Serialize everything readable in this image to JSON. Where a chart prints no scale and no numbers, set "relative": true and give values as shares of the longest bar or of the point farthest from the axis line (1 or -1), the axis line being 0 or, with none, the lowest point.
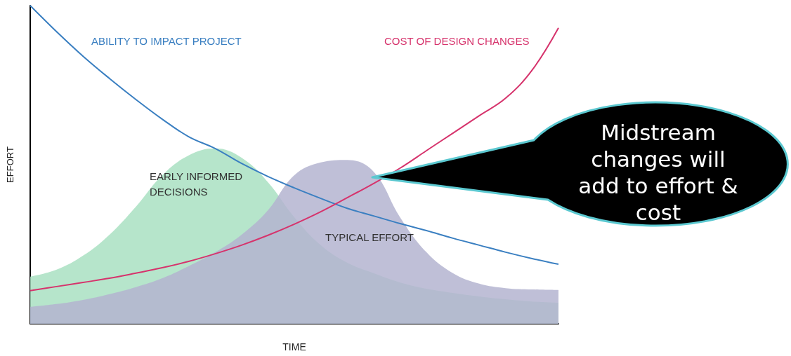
{
  "chart_data": {
    "type": "line",
    "relative": true,
    "xlabel": "TIME",
    "ylabel": "EFFORT",
    "legend": false,
    "marker": "none",
    "line_style": "solid",
    "grid": false,
    "categories": [
      null,
      null,
      null,
      null,
      null,
      null,
      null,
      null,
      null,
      null,
      null,
      null,
      null,
      null,
      null,
      null,
      null,
      null,
      null,
      null,
      null
    ],
    "series": [
      {
        "type": "area",
        "name": "EARLY INFORMED DECISIONS",
        "color": "#a9e0c2",
        "values": [
          0.148,
          0.17,
          0.214,
          0.28,
          0.368,
          0.467,
          0.529,
          0.551,
          0.522,
          0.445,
          0.335,
          0.247,
          0.192,
          0.159,
          0.13,
          0.11,
          0.097,
          0.086,
          0.077,
          0.07,
          0.066
        ]
      },
      {
        "type": "area",
        "name": "TYPICAL EFFORT",
        "color": "#b4b4d0",
        "values": [
          0.053,
          0.062,
          0.075,
          0.093,
          0.115,
          0.143,
          0.181,
          0.225,
          0.28,
          0.357,
          0.467,
          0.507,
          0.515,
          0.478,
          0.335,
          0.225,
          0.159,
          0.126,
          0.112,
          0.108,
          0.106
        ]
      },
      {
        "type": "line",
        "name": "ABILITY TO IMPACT PROJECT",
        "color": "#3a7fc1",
        "values": [
          1.0,
          0.918,
          0.841,
          0.771,
          0.705,
          0.643,
          0.588,
          0.551,
          0.504,
          0.463,
          0.427,
          0.394,
          0.363,
          0.339,
          0.315,
          0.293,
          0.269,
          0.247,
          0.225,
          0.205,
          0.187
        ]
      },
      {
        "type": "line",
        "name": "COST OF DESIGN CHANGES",
        "color": "#d6336c",
        "values": [
          0.104,
          0.117,
          0.13,
          0.143,
          0.159,
          0.176,
          0.196,
          0.22,
          0.247,
          0.278,
          0.313,
          0.352,
          0.396,
          0.441,
          0.489,
          0.544,
          0.599,
          0.654,
          0.709,
          0.797,
          0.93
        ]
      }
    ],
    "annotations": [
      "Midstream changes will add to effort & cost"
    ]
  }
}
